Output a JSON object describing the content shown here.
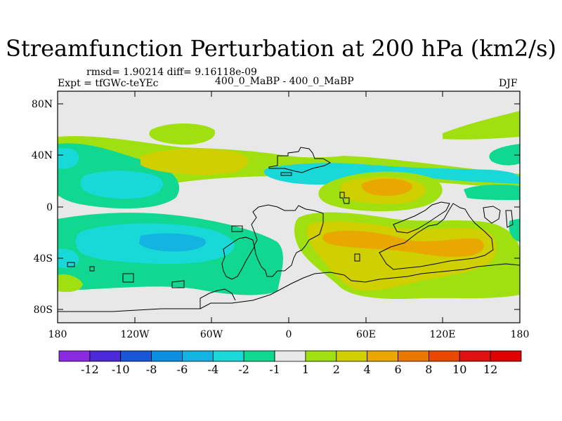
{
  "title": "Streamfunction Perturbation at 200 hPa (km2/s)",
  "stats_line": "rmsd= 1.90214  diff= 9.16118e-09",
  "expt_line": "Expt = tfGWc-teYEc",
  "comparison": "400_0_MaBP - 400_0_MaBP",
  "season": "DJF",
  "lat_ticks": [
    "80N",
    "40N",
    "0",
    "40S",
    "80S"
  ],
  "lon_ticks": [
    "180",
    "120W",
    "60W",
    "0",
    "60E",
    "120E",
    "180"
  ],
  "chart_data": {
    "type": "heatmap",
    "title": "Streamfunction Perturbation at 200 hPa (km2/s)",
    "units": "km2/s",
    "xlim": [
      -180,
      180
    ],
    "ylim": [
      -90,
      90
    ],
    "x_ticks": [
      -180,
      -120,
      -60,
      0,
      60,
      120,
      180
    ],
    "y_ticks": [
      80,
      40,
      0,
      -40,
      -80
    ],
    "colorbar": {
      "labels": [
        "-12",
        "-10",
        "-8",
        "-6",
        "-4",
        "-2",
        "-1",
        "1",
        "2",
        "4",
        "6",
        "8",
        "10",
        "12"
      ],
      "colors": [
        "#8a2be2",
        "#4b28d8",
        "#1a56d8",
        "#0c8fe0",
        "#14b4e0",
        "#18d8d8",
        "#10d890",
        "#e8e8e8",
        "#a0e010",
        "#d0d000",
        "#e8a800",
        "#e87800",
        "#e84800",
        "#e01010",
        "#e00000"
      ]
    },
    "regions": [
      {
        "level": "-2 to -1",
        "color": "#10d890",
        "lon": [
          -180,
          -100
        ],
        "lat": [
          30,
          60
        ]
      },
      {
        "level": "-4 to -2",
        "color": "#18d8d8",
        "lon": [
          -160,
          -120
        ],
        "lat": [
          10,
          30
        ]
      },
      {
        "level": "-2 to -1",
        "color": "#10d890",
        "lon": [
          -180,
          0
        ],
        "lat": [
          -70,
          -10
        ]
      },
      {
        "level": "-6 to -4",
        "color": "#14b4e0",
        "lon": [
          -140,
          -80
        ],
        "lat": [
          -40,
          -20
        ]
      },
      {
        "level": "2 to 4",
        "color": "#d0d000",
        "lon": [
          -120,
          -40
        ],
        "lat": [
          30,
          50
        ]
      },
      {
        "level": "4 to 6",
        "color": "#e8a800",
        "lon": [
          60,
          100
        ],
        "lat": [
          10,
          30
        ]
      },
      {
        "level": "4 to 6",
        "color": "#e8a800",
        "lon": [
          20,
          160
        ],
        "lat": [
          -70,
          -10
        ]
      },
      {
        "level": "6 to 8",
        "color": "#e87800",
        "lon": [
          60,
          120
        ],
        "lat": [
          -40,
          -20
        ]
      }
    ]
  }
}
